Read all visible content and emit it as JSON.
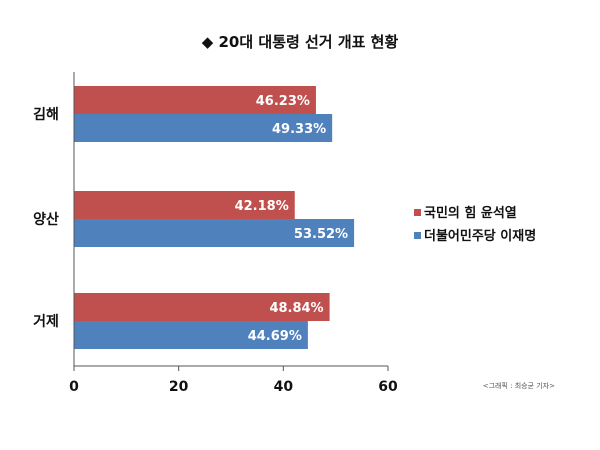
{
  "chart_data": {
    "type": "bar",
    "orientation": "horizontal",
    "title": "◆ 20대 대통령 선거 개표 현황",
    "categories": [
      "김해",
      "양산",
      "거제"
    ],
    "series": [
      {
        "name": "국민의 힘 윤석열",
        "color": "#c0504d",
        "values": [
          46.23,
          42.18,
          48.84
        ]
      },
      {
        "name": "더불어민주당 이재명",
        "color": "#4f81bd",
        "values": [
          49.33,
          53.52,
          44.69
        ]
      }
    ],
    "value_suffix": "%",
    "xlim": [
      0,
      60
    ],
    "x_ticks": [
      0,
      20,
      40,
      60
    ],
    "grid": false,
    "legend_position": "right",
    "credit": "<그래픽 : 최승균 기자>"
  }
}
